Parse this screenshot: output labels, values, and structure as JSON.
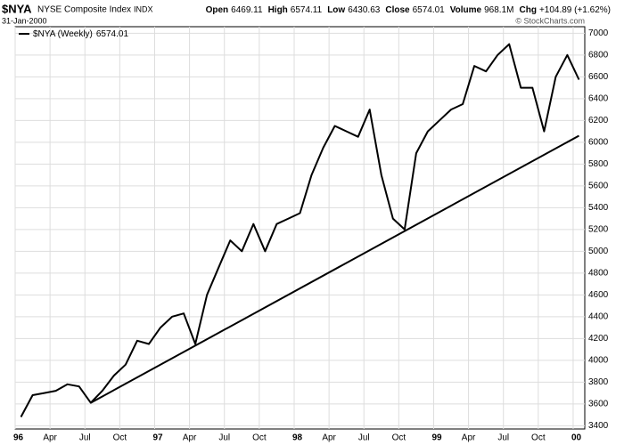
{
  "header": {
    "symbol": "$NYA",
    "name": "NYSE Composite Index",
    "exchange": "INDX",
    "date": "31-Jan-2000",
    "quote": [
      [
        "Open",
        "6469.11"
      ],
      [
        "High",
        "6574.11"
      ],
      [
        "Low",
        "6430.63"
      ],
      [
        "Close",
        "6574.01"
      ],
      [
        "Volume",
        "968.1M"
      ],
      [
        "Chg",
        "+104.89 (+1.62%)"
      ]
    ],
    "credit": "© StockCharts.com"
  },
  "chart_data": {
    "type": "line",
    "x": [
      "1996-01",
      "1996-02",
      "1996-03",
      "1996-04",
      "1996-05",
      "1996-06",
      "1996-07",
      "1996-08",
      "1996-09",
      "1996-10",
      "1996-11",
      "1996-12",
      "1997-01",
      "1997-02",
      "1997-03",
      "1997-04",
      "1997-05",
      "1997-06",
      "1997-07",
      "1997-08",
      "1997-09",
      "1997-10",
      "1997-11",
      "1997-12",
      "1998-01",
      "1998-02",
      "1998-03",
      "1998-04",
      "1998-05",
      "1998-06",
      "1998-07",
      "1998-08",
      "1998-09",
      "1998-10",
      "1998-11",
      "1998-12",
      "1999-01",
      "1999-02",
      "1999-03",
      "1999-04",
      "1999-05",
      "1999-06",
      "1999-07",
      "1999-08",
      "1999-09",
      "1999-10",
      "1999-11",
      "1999-12",
      "2000-01"
    ],
    "series": [
      {
        "name": "$NYA (Weekly)",
        "color": "#000000",
        "values": [
          3480,
          3680,
          3700,
          3720,
          3780,
          3760,
          3610,
          3720,
          3860,
          3960,
          4180,
          4150,
          4300,
          4400,
          4430,
          4150,
          4600,
          4850,
          5100,
          5000,
          5250,
          5000,
          5250,
          5300,
          5350,
          5700,
          5950,
          6150,
          6100,
          6050,
          6300,
          5700,
          5300,
          5200,
          5900,
          6100,
          6200,
          6300,
          6350,
          6700,
          6650,
          6800,
          6900,
          6500,
          6500,
          6100,
          6600,
          6800,
          6574.01
        ]
      }
    ],
    "trendline": {
      "x": [
        "1996-07",
        "2000-01"
      ],
      "values": [
        3610,
        6060
      ]
    },
    "xlim": [
      "1996-01",
      "2000-02"
    ],
    "xticks": [
      {
        "value": "1996-01",
        "label": "96"
      },
      {
        "value": "1996-04",
        "label": "Apr"
      },
      {
        "value": "1996-07",
        "label": "Jul"
      },
      {
        "value": "1996-10",
        "label": "Oct"
      },
      {
        "value": "1997-01",
        "label": "97"
      },
      {
        "value": "1997-04",
        "label": "Apr"
      },
      {
        "value": "1997-07",
        "label": "Jul"
      },
      {
        "value": "1997-10",
        "label": "Oct"
      },
      {
        "value": "1998-01",
        "label": "98"
      },
      {
        "value": "1998-04",
        "label": "Apr"
      },
      {
        "value": "1998-07",
        "label": "Jul"
      },
      {
        "value": "1998-10",
        "label": "Oct"
      },
      {
        "value": "1999-01",
        "label": "99"
      },
      {
        "value": "1999-04",
        "label": "Apr"
      },
      {
        "value": "1999-07",
        "label": "Jul"
      },
      {
        "value": "1999-10",
        "label": "Oct"
      },
      {
        "value": "2000-01",
        "label": "00"
      }
    ],
    "ylim": [
      3370,
      7060
    ],
    "yticks": [
      3400,
      3600,
      3800,
      4000,
      4200,
      4400,
      4600,
      4800,
      5000,
      5200,
      5400,
      5600,
      5800,
      6000,
      6200,
      6400,
      6600,
      6800,
      7000
    ],
    "grid": true
  }
}
